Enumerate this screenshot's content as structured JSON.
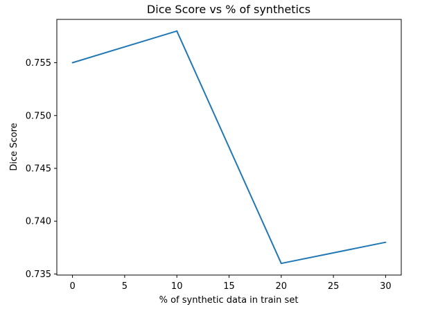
{
  "chart_data": {
    "type": "line",
    "title": "Dice Score vs % of synthetics",
    "xlabel": "% of synthetic data in train set",
    "ylabel": "Dice Score",
    "x": [
      0,
      10,
      20,
      30
    ],
    "series": [
      {
        "values": [
          0.755,
          0.758,
          0.736,
          0.738
        ],
        "color": "#1f77b4"
      }
    ],
    "xticks": [
      "0",
      "5",
      "10",
      "15",
      "20",
      "25",
      "30"
    ],
    "yticks": [
      "0.735",
      "0.740",
      "0.745",
      "0.750",
      "0.755"
    ],
    "xlim": [
      -1.5,
      31.5
    ],
    "ylim": [
      0.7349,
      0.7591
    ],
    "grid": false,
    "legend": "none"
  }
}
